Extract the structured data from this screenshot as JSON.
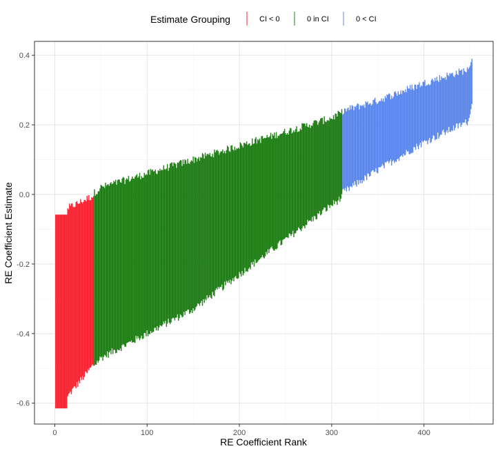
{
  "chart_data": {
    "type": "errorbar",
    "xlabel": "RE Coefficient Rank",
    "ylabel": "RE Coefficient Estimate",
    "xlim": [
      -22,
      475
    ],
    "ylim": [
      -0.66,
      0.44
    ],
    "x_ticks": [
      0,
      100,
      200,
      300,
      400
    ],
    "x_tick_labels": [
      "0",
      "100",
      "200",
      "300",
      "400"
    ],
    "y_ticks": [
      -0.6,
      -0.4,
      -0.2,
      0.0,
      0.2,
      0.4
    ],
    "y_tick_labels": [
      "-0.6",
      "-0.4",
      "-0.2",
      "0.0",
      "0.2",
      "0.4"
    ],
    "grid": true,
    "legend": {
      "title": "Estimate Grouping",
      "position": "top",
      "entries": [
        {
          "label": "CI < 0",
          "color": "#ff1f2e"
        },
        {
          "label": "0 in CI",
          "color": "#1e7d14"
        },
        {
          "label": "0 < CI",
          "color": "#5b87ec"
        }
      ]
    },
    "n_coefficients": 452,
    "groups": [
      {
        "name": "CI < 0",
        "rank_range": [
          1,
          42
        ],
        "color": "#ff1f2e"
      },
      {
        "name": "0 in CI",
        "rank_range": [
          43,
          311
        ],
        "color": "#1e7d14"
      },
      {
        "name": "0 < CI",
        "rank_range": [
          312,
          452
        ],
        "color": "#5b87ec"
      }
    ],
    "interval_knots": [
      {
        "rank": 1,
        "lower": -0.615,
        "upper": -0.058
      },
      {
        "rank": 13,
        "lower": -0.615,
        "upper": -0.058
      },
      {
        "rank": 14,
        "lower": -0.58,
        "upper": -0.04
      },
      {
        "rank": 42,
        "lower": -0.49,
        "upper": -0.003
      },
      {
        "rank": 43,
        "lower": -0.49,
        "upper": 0.005
      },
      {
        "rank": 50,
        "lower": -0.47,
        "upper": 0.02
      },
      {
        "rank": 100,
        "lower": -0.4,
        "upper": 0.06
      },
      {
        "rank": 150,
        "lower": -0.33,
        "upper": 0.1
      },
      {
        "rank": 200,
        "lower": -0.23,
        "upper": 0.14
      },
      {
        "rank": 250,
        "lower": -0.13,
        "upper": 0.18
      },
      {
        "rank": 300,
        "lower": -0.03,
        "upper": 0.22
      },
      {
        "rank": 311,
        "lower": -0.01,
        "upper": 0.235
      },
      {
        "rank": 312,
        "lower": 0.005,
        "upper": 0.24
      },
      {
        "rank": 350,
        "lower": 0.07,
        "upper": 0.27
      },
      {
        "rank": 400,
        "lower": 0.15,
        "upper": 0.32
      },
      {
        "rank": 448,
        "lower": 0.21,
        "upper": 0.36
      },
      {
        "rank": 450,
        "lower": 0.23,
        "upper": 0.37
      },
      {
        "rank": 452,
        "lower": 0.26,
        "upper": 0.39
      }
    ]
  }
}
